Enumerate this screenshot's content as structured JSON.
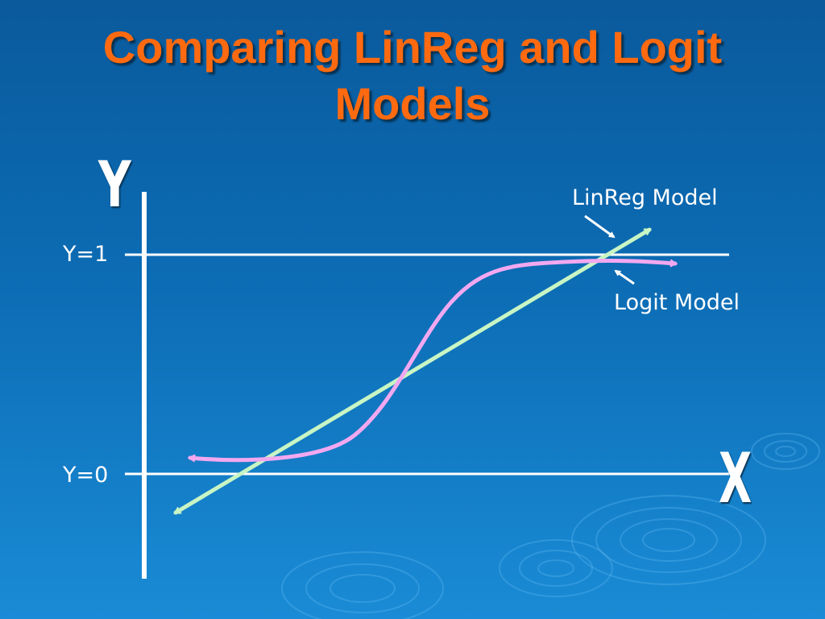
{
  "title": {
    "line1": "Comparing LinReg and Logit",
    "line2": "Models"
  },
  "axes": {
    "y_letter": "Y",
    "x_letter": "X"
  },
  "reference_lines": {
    "upper_label": "Y=1",
    "lower_label": "Y=0"
  },
  "curves": {
    "linreg_label": "LinReg Model",
    "logit_label": "Logit Model"
  },
  "colors": {
    "background": "#0c6cb4",
    "title": "#ff6a10",
    "linreg_line": "#c8f5c4",
    "logit_curve": "#f2a8f0",
    "axis": "#ffffff"
  }
}
